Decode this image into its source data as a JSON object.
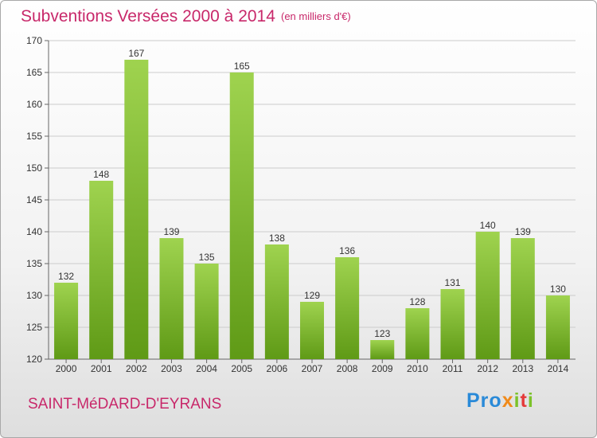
{
  "title": "Subventions Versées 2000 à 2014",
  "subtitle": "(en milliers d'€)",
  "commune": "SAINT-MéDARD-D'EYRANS",
  "logo": {
    "p1": "Pro",
    "p2": "x",
    "p3": "i",
    "p4": "t",
    "p5": "i"
  },
  "colors": {
    "bar_light": "#9fd34f",
    "bar_dark": "#5f9a16",
    "title": "#c8286a",
    "grid": "#cccccc"
  },
  "chart_data": {
    "type": "bar",
    "categories": [
      "2000",
      "2001",
      "2002",
      "2003",
      "2004",
      "2005",
      "2006",
      "2007",
      "2008",
      "2009",
      "2010",
      "2011",
      "2012",
      "2013",
      "2014"
    ],
    "values": [
      132,
      148,
      167,
      139,
      135,
      165,
      138,
      129,
      136,
      123,
      128,
      131,
      140,
      139,
      130
    ],
    "ylim": [
      120,
      170
    ],
    "yticks": [
      120,
      125,
      130,
      135,
      140,
      145,
      150,
      155,
      160,
      165,
      170
    ],
    "grid": true,
    "title": "Subventions Versées 2000 à 2014",
    "xlabel": "",
    "ylabel": ""
  }
}
